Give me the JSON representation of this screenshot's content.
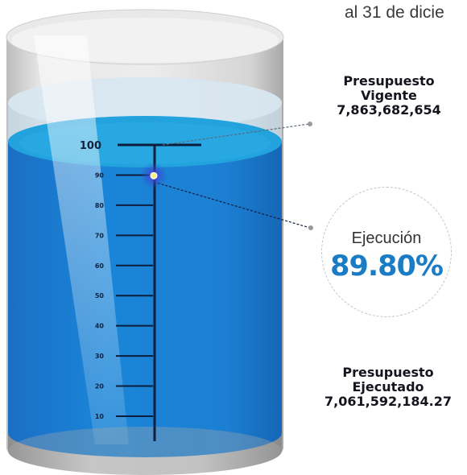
{
  "header": {
    "title_fragment": "al 31 de dicie"
  },
  "presupuesto_vigente": {
    "line1": "Presupuesto",
    "line2": "Vigente",
    "amount": "7,863,682,654"
  },
  "presupuesto_ejecutado": {
    "line1": "Presupuesto",
    "line2": "Ejecutado",
    "amount": "7,061,592,184.27"
  },
  "ejecucion": {
    "label": "Ejecución",
    "value_text": "89.80%"
  },
  "colors": {
    "water": "#1a7fd4",
    "water_surface": "#23a6de",
    "accent_text": "#1a7cc4",
    "scale_line": "#0d1d3c",
    "marker": "#f4f08a"
  },
  "chart_data": {
    "type": "gauge",
    "title": "",
    "value": 89.8,
    "range": [
      0,
      100
    ],
    "tick_values": [
      10,
      20,
      30,
      40,
      50,
      60,
      70,
      80,
      90,
      100
    ],
    "tick_labels": [
      "10",
      "20",
      "30",
      "40",
      "50",
      "60",
      "70",
      "80",
      "90",
      "100"
    ]
  }
}
